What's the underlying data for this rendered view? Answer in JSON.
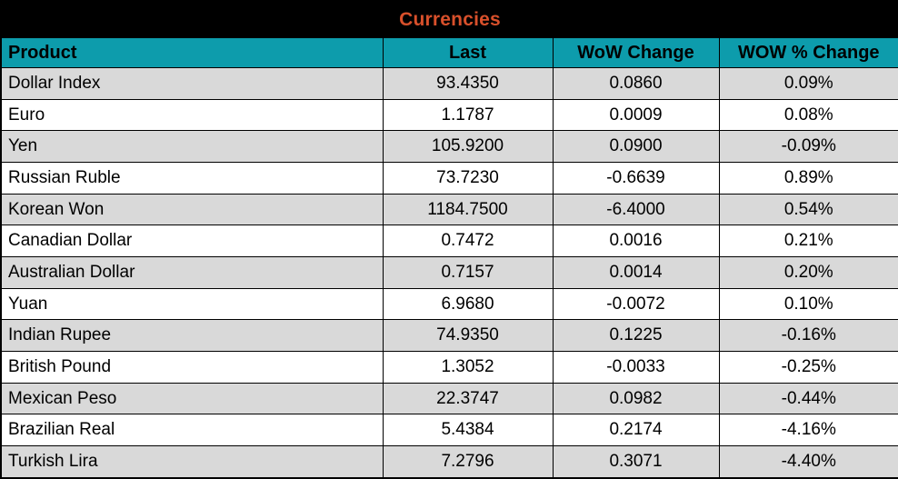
{
  "colors": {
    "title_bg": "#000000",
    "title_text": "#d8502b",
    "header_bg": "#0d9cac",
    "row_alt": "#d9d9d9",
    "row_white": "#ffffff",
    "border": "#000000"
  },
  "chart_data": {
    "type": "table",
    "title": "Currencies",
    "columns": [
      "Product",
      "Last",
      "WoW Change",
      "WOW % Change"
    ],
    "rows": [
      {
        "product": "Dollar Index",
        "last": "93.4350",
        "wow_change": "0.0860",
        "wow_pct_change": "0.09%"
      },
      {
        "product": "Euro",
        "last": "1.1787",
        "wow_change": "0.0009",
        "wow_pct_change": "0.08%"
      },
      {
        "product": "Yen",
        "last": "105.9200",
        "wow_change": "0.0900",
        "wow_pct_change": "-0.09%"
      },
      {
        "product": "Russian Ruble",
        "last": "73.7230",
        "wow_change": "-0.6639",
        "wow_pct_change": "0.89%"
      },
      {
        "product": "Korean Won",
        "last": "1184.7500",
        "wow_change": "-6.4000",
        "wow_pct_change": "0.54%"
      },
      {
        "product": "Canadian Dollar",
        "last": "0.7472",
        "wow_change": "0.0016",
        "wow_pct_change": "0.21%"
      },
      {
        "product": "Australian Dollar",
        "last": "0.7157",
        "wow_change": "0.0014",
        "wow_pct_change": "0.20%"
      },
      {
        "product": "Yuan",
        "last": "6.9680",
        "wow_change": "-0.0072",
        "wow_pct_change": "0.10%"
      },
      {
        "product": "Indian Rupee",
        "last": "74.9350",
        "wow_change": "0.1225",
        "wow_pct_change": "-0.16%"
      },
      {
        "product": "British Pound",
        "last": "1.3052",
        "wow_change": "-0.0033",
        "wow_pct_change": "-0.25%"
      },
      {
        "product": "Mexican Peso",
        "last": "22.3747",
        "wow_change": "0.0982",
        "wow_pct_change": "-0.44%"
      },
      {
        "product": "Brazilian Real",
        "last": "5.4384",
        "wow_change": "0.2174",
        "wow_pct_change": "-4.16%"
      },
      {
        "product": "Turkish Lira",
        "last": "7.2796",
        "wow_change": "0.3071",
        "wow_pct_change": "-4.40%"
      }
    ]
  }
}
